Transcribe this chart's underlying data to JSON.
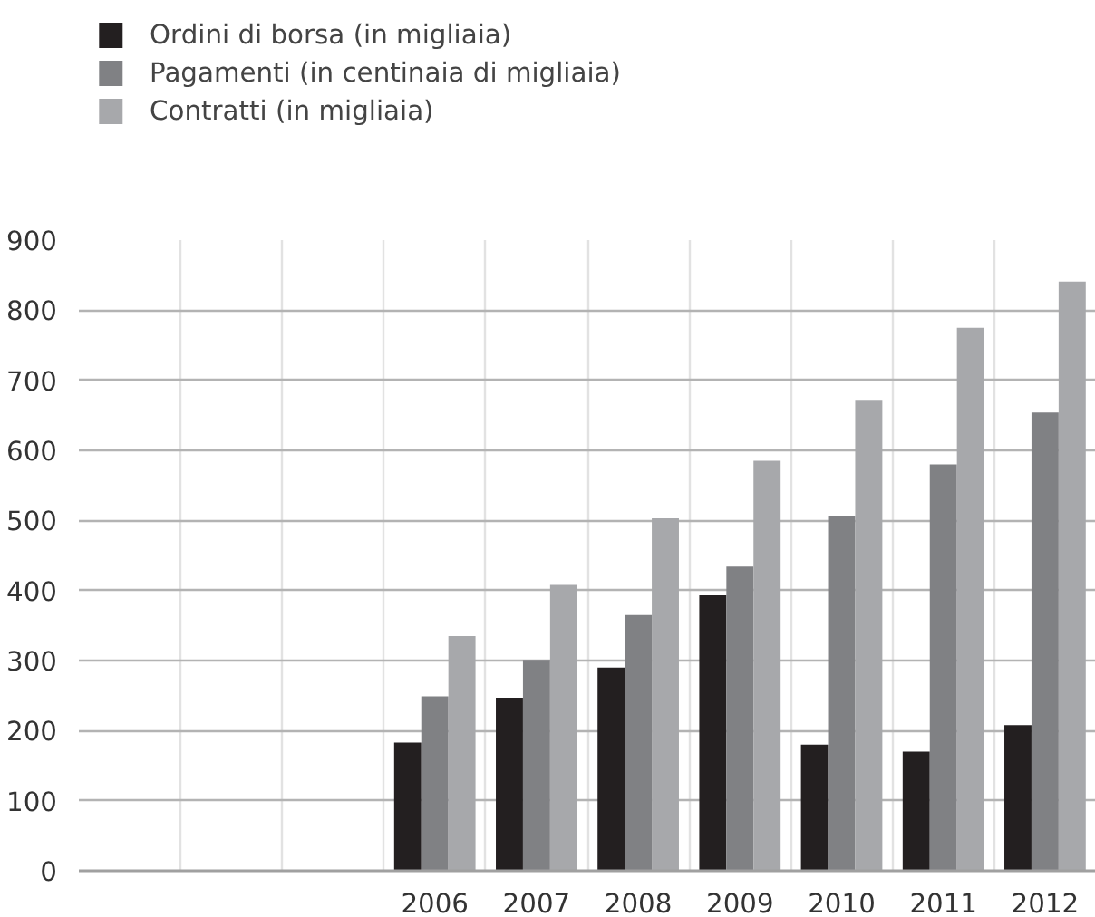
{
  "chart_data": {
    "type": "bar",
    "categories": [
      null,
      null,
      null,
      "2006",
      "2007",
      "2008",
      "2009",
      "2010",
      "2011",
      "2012"
    ],
    "series": [
      {
        "name": "Ordini di borsa (in migliaia)",
        "color": "#231f20",
        "values": [
          null,
          null,
          null,
          183,
          247,
          290,
          393,
          180,
          170,
          208
        ]
      },
      {
        "name": "Pagamenti (in centinaia di migliaia)",
        "color": "#808184",
        "values": [
          null,
          null,
          null,
          249,
          301,
          365,
          434,
          506,
          580,
          654
        ]
      },
      {
        "name": "Contratti (in migliaia)",
        "color": "#a7a8ab",
        "values": [
          null,
          null,
          null,
          335,
          408,
          503,
          585,
          672,
          775,
          841
        ]
      }
    ],
    "ylim": [
      0,
      900
    ],
    "yticks": [
      0,
      100,
      200,
      300,
      400,
      500,
      600,
      700,
      800,
      900
    ],
    "grid": true,
    "legend": "top left"
  }
}
